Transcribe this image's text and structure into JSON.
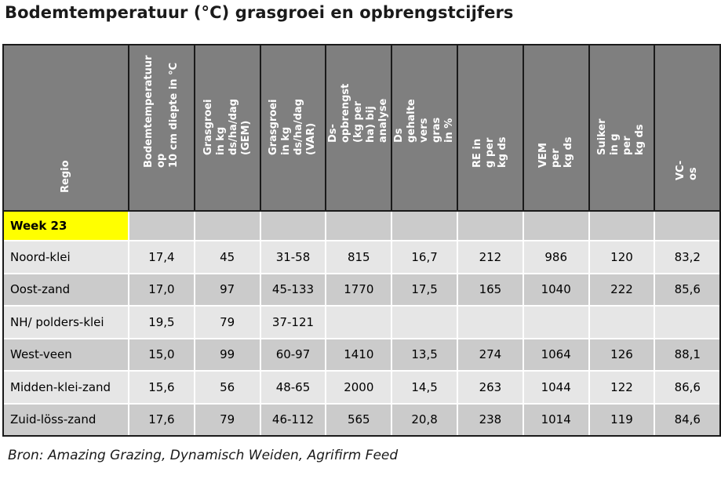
{
  "title": "Bodemtemperatuur (°C) grasgroei en opbrengstcijfers",
  "table": {
    "headers": [
      "Regio",
      "Bodemtemperatuur op\n10 cm diepte in °C",
      "Grasgroei in kg\nds/ha/dag (GEM)",
      "Grasgroei in kg\nds/ha/dag (VAR)",
      "Ds-opbrengst (kg per\nha) bij analyse",
      "Ds gehalte vers gras\nin %",
      "RE in g per kg ds",
      "VEM per kg ds",
      "Suiker in g per kg ds",
      "VC-os"
    ],
    "week_label": "Week 23",
    "rows": [
      [
        "Noord-klei",
        "17,4",
        "45",
        "31-58",
        "815",
        "16,7",
        "212",
        "986",
        "120",
        "83,2"
      ],
      [
        "Oost-zand",
        "17,0",
        "97",
        "45-133",
        "1770",
        "17,5",
        "165",
        "1040",
        "222",
        "85,6"
      ],
      [
        "NH/ polders-klei",
        "19,5",
        "79",
        "37-121",
        "",
        "",
        "",
        "",
        "",
        ""
      ],
      [
        "West-veen",
        "15,0",
        "99",
        "60-97",
        "1410",
        "13,5",
        "274",
        "1064",
        "126",
        "88,1"
      ],
      [
        "Midden-klei-zand",
        "15,6",
        "56",
        "48-65",
        "2000",
        "14,5",
        "263",
        "1044",
        "122",
        "86,6"
      ],
      [
        "Zuid-löss-zand",
        "17,6",
        "79",
        "46-112",
        "565",
        "20,8",
        "238",
        "1014",
        "119",
        "84,6"
      ]
    ]
  },
  "source": "Bron: Amazing Grazing, Dynamisch Weiden, Agrifirm Feed"
}
